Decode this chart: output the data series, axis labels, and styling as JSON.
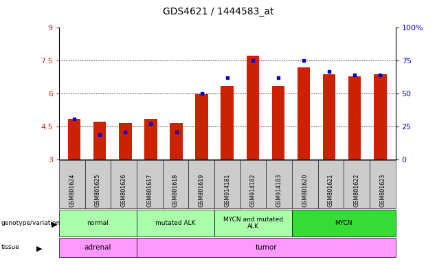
{
  "title": "GDS4621 / 1444583_at",
  "samples": [
    "GSM801624",
    "GSM801625",
    "GSM801626",
    "GSM801617",
    "GSM801618",
    "GSM801619",
    "GSM914181",
    "GSM914182",
    "GSM914183",
    "GSM801620",
    "GSM801621",
    "GSM801622",
    "GSM801623"
  ],
  "red_values": [
    4.85,
    4.72,
    4.68,
    4.85,
    4.68,
    5.97,
    6.35,
    7.72,
    6.35,
    7.2,
    6.88,
    6.78,
    6.88
  ],
  "blue_values_pct": [
    31,
    19,
    21,
    27,
    21,
    50,
    62,
    75,
    62,
    75,
    67,
    64,
    64
  ],
  "ylim_left": [
    3,
    9
  ],
  "ylim_right": [
    0,
    100
  ],
  "yticks_left": [
    3,
    4.5,
    6,
    7.5,
    9
  ],
  "yticks_right": [
    0,
    25,
    50,
    75,
    100
  ],
  "genotype_groups": [
    {
      "label": "normal",
      "start": 0,
      "end": 3,
      "color": "#AAFFAA"
    },
    {
      "label": "mutated ALK",
      "start": 3,
      "end": 6,
      "color": "#AAFFAA"
    },
    {
      "label": "MYCN and mutated\nALK",
      "start": 6,
      "end": 9,
      "color": "#AAFFAA"
    },
    {
      "label": "MYCN",
      "start": 9,
      "end": 13,
      "color": "#33DD33"
    }
  ],
  "tissue_groups": [
    {
      "label": "adrenal",
      "start": 0,
      "end": 3,
      "color": "#FF99FF"
    },
    {
      "label": "tumor",
      "start": 3,
      "end": 13,
      "color": "#FF99FF"
    }
  ],
  "bar_width": 0.5,
  "red_color": "#CC2200",
  "blue_color": "#0000CC",
  "tick_color_left": "#CC2200",
  "tick_color_right": "#0000CC"
}
